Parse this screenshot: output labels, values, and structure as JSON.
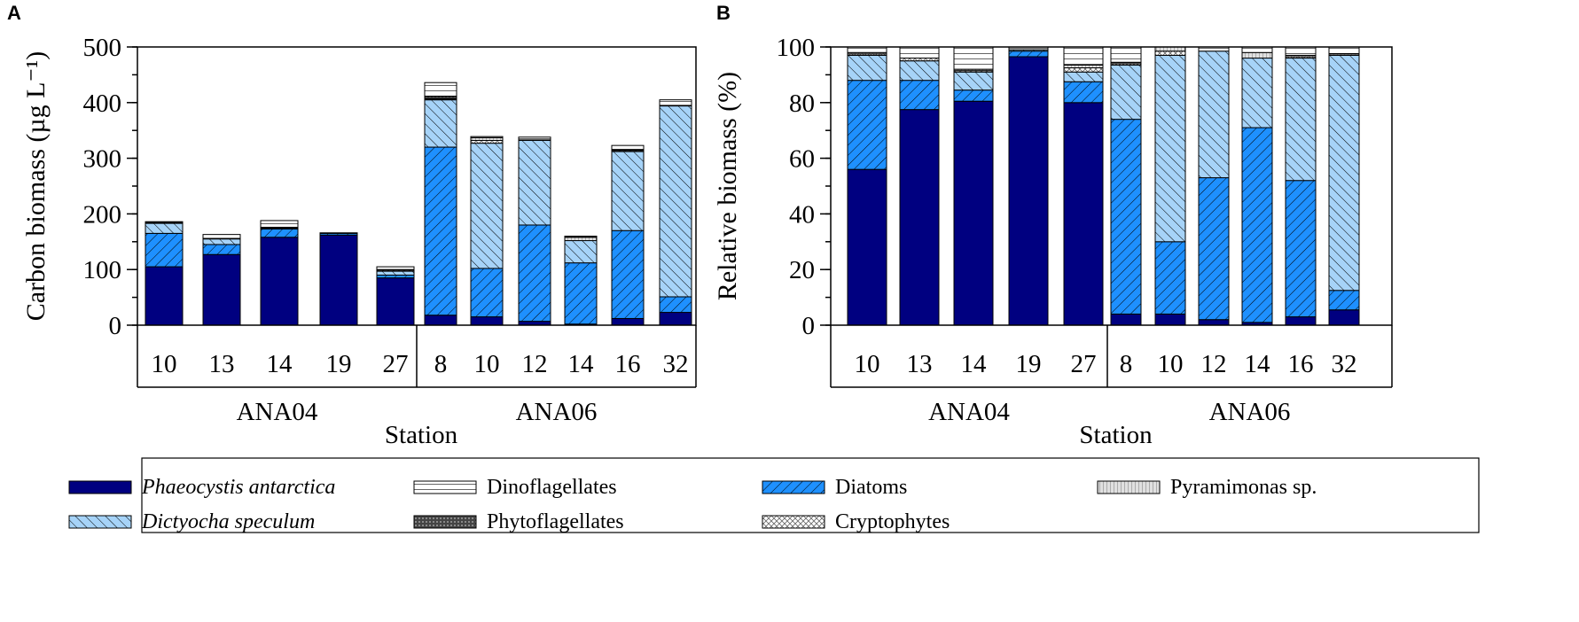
{
  "panel_labels": [
    "A",
    "B"
  ],
  "legend": [
    {
      "label": "Phaeocystis antarctica",
      "italic": true
    },
    {
      "label": "Dinoflagellates",
      "italic": false
    },
    {
      "label": "Diatoms",
      "italic": false
    },
    {
      "label": "Pyramimonas sp.",
      "italic": false
    },
    {
      "label": "Dictyocha speculum",
      "italic": true
    },
    {
      "label": "Phytoflagellates",
      "italic": false
    },
    {
      "label": "Cryptophytes",
      "italic": false
    }
  ],
  "colors": {
    "phaeocystis": "#000080",
    "diatoms": "#1E90FF",
    "dictyocha": "#A6D3F8",
    "dinoflagellates": "#FFFFFF",
    "phytoflagellates": "#555555",
    "pyramimonas": "#D8D8D8",
    "cryptophytes": "#FFFFFF"
  },
  "chart_data": [
    {
      "type": "bar",
      "stacked": true,
      "panel": "A",
      "title": "",
      "xlabel": "Station",
      "ylabel": "Carbon biomass (µg L⁻¹)",
      "ylim": [
        0,
        500
      ],
      "yticks": [
        0,
        100,
        200,
        300,
        400,
        500
      ],
      "groups": [
        {
          "name": "ANA04",
          "categories": [
            "10",
            "13",
            "14",
            "19",
            "27"
          ]
        },
        {
          "name": "ANA06",
          "categories": [
            "8",
            "10",
            "12",
            "14",
            "16",
            "32"
          ]
        }
      ],
      "series": [
        {
          "name": "Phaeocystis antarctica",
          "key": "phaeocystis",
          "values": [
            105,
            127,
            158,
            162,
            85,
            18,
            15,
            7,
            2,
            12,
            23
          ]
        },
        {
          "name": "Diatoms",
          "key": "diatoms",
          "values": [
            60,
            18,
            15,
            3,
            5,
            302,
            87,
            173,
            110,
            158,
            28
          ]
        },
        {
          "name": "Dictyocha speculum",
          "key": "dictyocha",
          "values": [
            18,
            10,
            0,
            0,
            7,
            85,
            225,
            152,
            40,
            142,
            343
          ]
        },
        {
          "name": "Cryptophytes",
          "key": "cryptophytes",
          "values": [
            1,
            1,
            1,
            0,
            2,
            1,
            5,
            0,
            0,
            2,
            0
          ]
        },
        {
          "name": "Pyramimonas sp.",
          "key": "pyramimonas",
          "values": [
            1,
            0,
            1,
            0,
            1,
            1,
            5,
            1,
            6,
            1,
            1
          ]
        },
        {
          "name": "Phytoflagellates",
          "key": "phytoflagellates",
          "values": [
            0,
            0,
            1,
            0,
            0,
            4,
            0,
            0,
            1,
            0,
            0
          ]
        },
        {
          "name": "Dinoflagellates",
          "key": "dinoflagellates",
          "values": [
            1,
            7,
            12,
            1,
            5,
            25,
            2,
            5,
            1,
            8,
            10
          ]
        }
      ]
    },
    {
      "type": "bar",
      "stacked": true,
      "panel": "B",
      "title": "",
      "xlabel": "Station",
      "ylabel": "Relative biomass (%)",
      "ylim": [
        0,
        100
      ],
      "yticks": [
        0,
        20,
        40,
        60,
        80,
        100
      ],
      "groups": [
        {
          "name": "ANA04",
          "categories": [
            "10",
            "13",
            "14",
            "19",
            "27"
          ]
        },
        {
          "name": "ANA06",
          "categories": [
            "8",
            "10",
            "12",
            "14",
            "16",
            "32"
          ]
        }
      ],
      "series": [
        {
          "name": "Phaeocystis antarctica",
          "key": "phaeocystis",
          "values": [
            56,
            77.5,
            80.5,
            96.5,
            80,
            4,
            4,
            2,
            1,
            3,
            5.5
          ]
        },
        {
          "name": "Diatoms",
          "key": "diatoms",
          "values": [
            32,
            10.5,
            4,
            2,
            7.5,
            70,
            26,
            51,
            70,
            49,
            7
          ]
        },
        {
          "name": "Dictyocha speculum",
          "key": "dictyocha",
          "values": [
            9,
            7,
            6.5,
            0.5,
            3.5,
            19.5,
            67,
            45.5,
            25,
            44,
            84.5
          ]
        },
        {
          "name": "Cryptophytes",
          "key": "cryptophytes",
          "values": [
            0.5,
            1,
            0.5,
            0,
            1.5,
            0,
            1.5,
            0,
            0,
            0.5,
            0
          ]
        },
        {
          "name": "Pyramimonas sp.",
          "key": "pyramimonas",
          "values": [
            0.5,
            0,
            0.5,
            0,
            1,
            0,
            1.5,
            0,
            2,
            0.5,
            0.5
          ]
        },
        {
          "name": "Phytoflagellates",
          "key": "phytoflagellates",
          "values": [
            0,
            0,
            0,
            0,
            0,
            1,
            0,
            0,
            0,
            0,
            0
          ]
        },
        {
          "name": "Dinoflagellates",
          "key": "dinoflagellates",
          "values": [
            2,
            4,
            8,
            1,
            6.5,
            5.5,
            0,
            1.5,
            2,
            3,
            2.5
          ]
        }
      ]
    }
  ]
}
